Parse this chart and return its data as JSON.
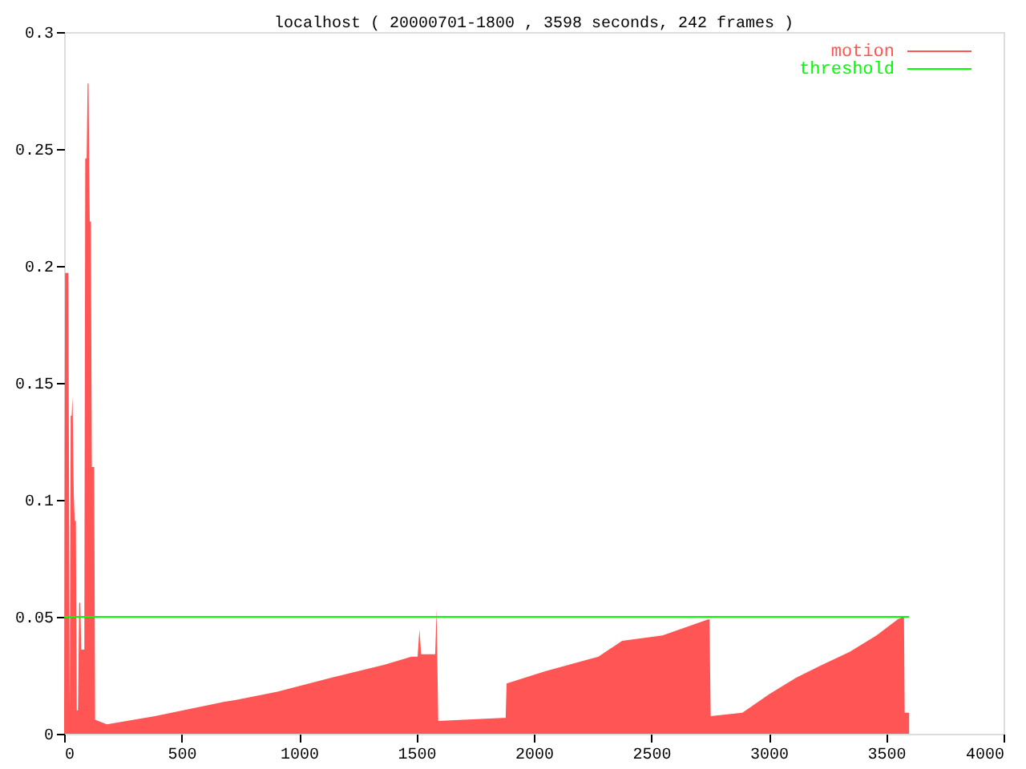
{
  "chart_data": {
    "type": "area",
    "title": "localhost ( 20000701-1800 , 3598 seconds, 242 frames )",
    "xlim": [
      0,
      4000
    ],
    "xticks": [
      0,
      500,
      1000,
      1500,
      2000,
      2500,
      3000,
      3500,
      4000
    ],
    "ylim": [
      0,
      0.3
    ],
    "yticks": [
      0,
      0.05,
      0.1,
      0.15,
      0.2,
      0.25,
      0.3
    ],
    "grid": false,
    "legend": "top right",
    "series": [
      {
        "name": "motion",
        "color": "#ff5555",
        "x": [
          0,
          4,
          18,
          24,
          28,
          32,
          36,
          41,
          45,
          50,
          54,
          59,
          64,
          69,
          73,
          80,
          86,
          90,
          96,
          100,
          104,
          109,
          114,
          118,
          123,
          128,
          132,
          182,
          387,
          683,
          728,
          908,
          1138,
          1365,
          1479,
          1505,
          1513,
          1520,
          1559,
          1580,
          1586,
          1593,
          1866,
          1880,
          1884,
          2048,
          2275,
          2376,
          2548,
          2742,
          2748,
          2753,
          2888,
          3004,
          3117,
          3229,
          3345,
          3459,
          3550,
          3572,
          3576,
          3579,
          3598
        ],
        "values": [
          0.008,
          0.197,
          0.197,
          0.008,
          0.136,
          0.136,
          0.144,
          0.103,
          0.091,
          0.091,
          0.01,
          0.01,
          0.056,
          0.056,
          0.036,
          0.036,
          0.036,
          0.246,
          0.246,
          0.278,
          0.278,
          0.219,
          0.219,
          0.114,
          0.114,
          0.114,
          0.006,
          0.004,
          0.0075,
          0.0137,
          0.0144,
          0.018,
          0.024,
          0.0295,
          0.033,
          0.033,
          0.0447,
          0.034,
          0.034,
          0.034,
          0.0534,
          0.0055,
          0.0068,
          0.0068,
          0.0215,
          0.0267,
          0.033,
          0.0397,
          0.042,
          0.0489,
          0.0489,
          0.0075,
          0.009,
          0.017,
          0.024,
          0.0295,
          0.035,
          0.042,
          0.049,
          0.05,
          0.05,
          0.009,
          0.009
        ]
      },
      {
        "name": "threshold",
        "color": "#00ff00",
        "type": "line",
        "x": [
          0,
          3598
        ],
        "values": [
          0.05,
          0.05
        ]
      }
    ]
  }
}
